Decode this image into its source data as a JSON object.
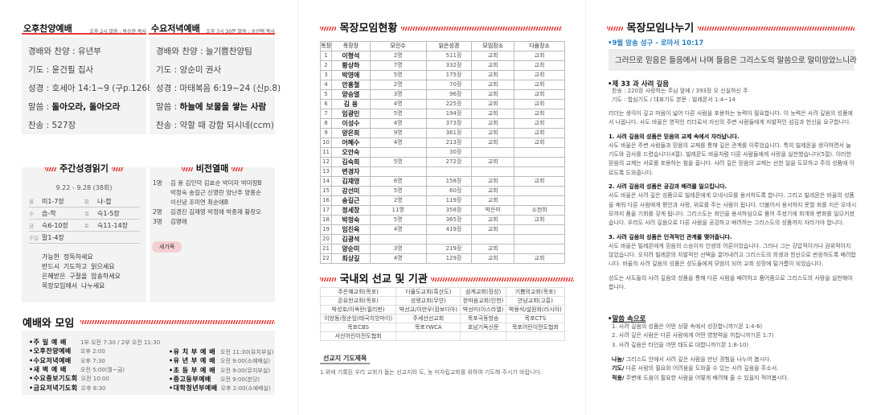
{
  "afternoon": {
    "title": "오후찬양예배",
    "sub": "오후 2시 말씀 : 박수현 목사",
    "lines": [
      {
        "label": "경배와 찬양 : ",
        "value": "유년부"
      },
      {
        "label": "기도 : ",
        "value": "윤건필 집사"
      },
      {
        "label": "성경 : ",
        "value": "호세아 14:1~9 (구p.1268)"
      },
      {
        "label": "말씀 : ",
        "value": "돌아오라, 돌아오라"
      },
      {
        "label": "찬송 : ",
        "value": "527장"
      }
    ]
  },
  "wednesday": {
    "title": "수요저녁예배",
    "sub": "오후 7시 30분 말씀 : 송선택 목사",
    "lines": [
      {
        "label": "경배와 찬양 : ",
        "value": "늘기쁨찬양팀"
      },
      {
        "label": "기도 : ",
        "value": "양순미 권사"
      },
      {
        "label": "성경 : ",
        "value": "마태복음 6:19~24 (신p.8)"
      },
      {
        "label": "말씀 : ",
        "value": "하늘에 보물을 쌓는 사람"
      },
      {
        "label": "찬송 : ",
        "value": "약할 때 강함 되시네(ccm)"
      }
    ]
  },
  "bible_reading": {
    "title": "주간성경읽기",
    "range": "9.22 - 9.28 (38회)",
    "rows": [
      [
        {
          "day": "월",
          "text": "미1-7장"
        },
        {
          "day": "화",
          "text": "나-합"
        }
      ],
      [
        {
          "day": "수",
          "text": "습-학"
        },
        {
          "day": "목",
          "text": "슥1-5장"
        }
      ],
      [
        {
          "day": "금",
          "text": "슥6-10장"
        },
        {
          "day": "토",
          "text": "슥11-14장"
        }
      ],
      [
        {
          "day": "주일",
          "text": "말1-4장"
        }
      ]
    ],
    "guide": [
      "가능한 정독하세요",
      "반드시 기도하고 읽으세요",
      "은혜받은 구절을 암송하세요",
      "목장모임에서 나누세요"
    ]
  },
  "vision": {
    "title": "비전열매",
    "entries": [
      {
        "count": "1명",
        "names": [
          "김   용 김인덕 김효순 박미자 박미정B",
          "박정숙 송길근 신영란 양난주 양홍순",
          "이신녕 조미연 최순애B"
        ]
      },
      {
        "count": "2명",
        "names": [
          "김경진 김재영 박정애 박종재 황창오"
        ]
      },
      {
        "count": "3명",
        "names": [
          "김명애"
        ]
      }
    ],
    "badge": "새가족"
  },
  "worship": {
    "title": "예배와 모임",
    "left": [
      {
        "label": "주 일 예 배",
        "time": "1부 오전 7:30 / 2부 오전 11:30"
      },
      {
        "label": "오후찬양예배",
        "time": "오후 2:00"
      },
      {
        "label": "수요저녁예배",
        "time": "오후 7:30"
      },
      {
        "label": "새 벽 예 배",
        "time": "오전 5:00(월~금)"
      },
      {
        "label": "수요중보기도회",
        "time": "오전 10:00"
      },
      {
        "label": "금요저녁기도회",
        "time": "오후 8:30"
      }
    ],
    "right": [
      {
        "label": "유 치 부 예 배",
        "time": "오전 11:30(유치부실)"
      },
      {
        "label": "유 년 부 예 배",
        "time": "오전 9:00(소예배실)"
      },
      {
        "label": "초 등 부 예 배",
        "time": "오전 9:00(뮤지부실)"
      },
      {
        "label": "중고등부예배",
        "time": "오전 9:00(본당)"
      },
      {
        "label": "대학청년부예배",
        "time": "오후 2:00(소예배실)"
      }
    ]
  },
  "cell": {
    "title": "목장모임현황",
    "headers": [
      "목장",
      "목장장",
      "모인수",
      "읽은성경",
      "모임장소",
      "다음장소"
    ],
    "rows": [
      [
        "1",
        "이형석",
        "2명",
        "511장",
        "교회",
        "교회"
      ],
      [
        "2",
        "황상하",
        "7명",
        "332장",
        "교회",
        "교회"
      ],
      [
        "3",
        "박영애",
        "5명",
        "175장",
        "교회",
        "교회"
      ],
      [
        "4",
        "안홍철",
        "2명",
        "70장",
        "교회",
        "교회"
      ],
      [
        "5",
        "양승열",
        "3명",
        "96장",
        "교회",
        "교회"
      ],
      [
        "6",
        "김   용",
        "4명",
        "225장",
        "교회",
        "교회"
      ],
      [
        "7",
        "임광민",
        "5명",
        "194장",
        "교회",
        "교회"
      ],
      [
        "8",
        "이성수",
        "4명",
        "373장",
        "교회",
        "교회"
      ],
      [
        "9",
        "양은희",
        "9명",
        "361장",
        "교회",
        "교회"
      ],
      [
        "10",
        "어혜수",
        "4명",
        "213장",
        "교회",
        "교회"
      ],
      [
        "11",
        "오안숙",
        "",
        "30장",
        "",
        ""
      ],
      [
        "12",
        "김숙희",
        "5명",
        "272장",
        "교회",
        ""
      ],
      [
        "13",
        "변경자",
        "",
        "",
        "",
        ""
      ],
      [
        "14",
        "김재영",
        "6명",
        "158장",
        "교회",
        "교회"
      ],
      [
        "15",
        "강선미",
        "5명",
        "60장",
        "교회",
        ""
      ],
      [
        "16",
        "송길근",
        "2명",
        "119장",
        "교회",
        ""
      ],
      [
        "17",
        "정세창",
        "11명",
        "358장",
        "박은미",
        "소현희"
      ],
      [
        "18",
        "박정숙",
        "5명",
        "365장",
        "교회",
        "교회"
      ],
      [
        "19",
        "임진옥",
        "4명",
        "419장",
        "교회",
        ""
      ],
      [
        "20",
        "김광석",
        "",
        "",
        "",
        ""
      ],
      [
        "21",
        "양순미",
        "3명",
        "219장",
        "교회",
        ""
      ],
      [
        "22",
        "최상길",
        "4명",
        "129장",
        "교회",
        "교회"
      ]
    ]
  },
  "missions": {
    "title": "국내외 선교 및 기관",
    "rows": [
      [
        "주은혜교회(목포)",
        "다물도교회(흑산도)",
        "삼계교회(장성)",
        "기쁨의교회(목포)"
      ],
      [
        "온유한교회(목포)",
        "성령교회(무안)",
        "한마음교회(인천)",
        "안남교회(고흥)"
      ],
      [
        "박성호/이옥란(필리핀)",
        "박선교/이만우(캄보디아)",
        "박선미(이스라엘)",
        "박용석/설원화(러시아)"
      ],
      [
        "이양동/정순임(태국치앙마이)",
        "주세선선교회",
        "목포극동방송",
        "목포CTS"
      ],
      [
        "목포CBS",
        "목포YWCA",
        "호남기독신문",
        "목포어린이전도협회"
      ],
      [
        "서산어린이전도협회",
        "",
        "",
        ""
      ]
    ],
    "prayer_title": "선교지 기도제목",
    "prayer_text": "1.위에 기록된 우리 교회가 돕는 선교지와 도, 농 미자립교회를 위하여 기도해 주시기 바랍니다."
  },
  "sharing": {
    "title": "목장모임나누기",
    "verse_label": "9월 암송 성구 - 로마서 10:17",
    "verse": "그러므로 믿음은 들음에서 나며 들음은 그리스도의 말씀으로 말미암았느니라",
    "lesson": "제 33 과 사려 깊음",
    "hymn": "찬송 : 220장 사랑하는 주님 앞에 / 393장 오 신실하신 주",
    "prayer": "기도 : 합심기도 / 대표기도   본문 : 빌레몬서 1:4~14",
    "intro": "리더는 생각이 깊고 마음이 넓어 다른 사람을 포용하는 능력이 필요합니다. 이 능력은 사려 깊음의 성품에서 나옵니다. 사도 바울은 영적인 리더로서 자신의 주변 사람들에게 자발적인 섬김과 헌신을 요구합니다.",
    "points": [
      {
        "head": "1. 사려 깊음의 성품은 믿음의 교제 속에서 자라납니다.",
        "body": "사도 바울은 주변 사람들과 믿음의 교제를 통해 깊은 관계를 이루었습니다. 특히 빌레몬을 생각하면서 늘 기도와 감사를 드렸습니다(4절). 빌레몬도 바울처럼 다른 사람들에게 사랑을 실천했습니다(5절). 이러한 믿음의 교제는 서로를 포용하는 힘을 줍니다. 사려 깊은 믿음의 교제는 선한 일을 도모하고 주의 성품에 이르도록 도와줍니다."
      },
      {
        "head": "2. 사려 깊음의 성품은 공감과 배려를 일으킵니다.",
        "body": "사도 바울은 사려 깊은 성품으로 빌레몬에게 오네시모를 용서하도록 합니다. 그리고 빌레몬은 바울의 성품을 배워 다른 사람에게 평안과 사랑, 위로를 주는 사람이 됩니다. 더불어서 용서하지 못할 죄를 지은 오네시모까지 품을 기회를 갖게 됩니다. 그리스도는 죄인을 용서하심으로 품어 주셨기에 회개와 변화를 일으키셨습니다. 우리도 사려 깊음으로 다른 사람을 공감하고 배려하는 그리스도의 성품까지 자라가야 합니다."
      },
      {
        "head": "3. 사려 깊음의 성품은 인격적인 관계를 맺어줍니다.",
        "body": "사도 바울은 빌레몬에게 믿음의 스승이자 인생의 어른이었습니다. 그러나 그는 강압적이거나 권위적이지 않았습니다. 오히려 빌레몬의 자발적인 선택을 끌어내려고 그리스도의 희생과 헌신으로 반응하도록 배려합니다. 바울의 사려 깊음의 성품은 성도들에게 모범이 되어 교회 성장에 밑거름이 되었습니다."
      }
    ],
    "closing": "성도는 사도들의 사려 깊음의 성품을 통해 다른 사람을 배려하고 품어줌으로 그리스도의 사랑을 실천해야 합니다.",
    "word_title": "말씀 속으로",
    "questions": [
      "1. 사려 깊음의 성품은 어떤 상황 속에서 성장합니까?(몬 1:4-6)",
      "2. 사려 깊은 사람은 다른 사람에게 어떤 영향력을 끼칩니까?(몬 1:7)",
      "3. 사려 깊음은 타인을 어떤 태도로 대합니까?(몬 1:8-10)"
    ],
    "apply": [
      {
        "label": "나눔/",
        "text": " 그리스도 안에서 사려 깊은 사람을 만난 경험을 나누어 봅시다."
      },
      {
        "label": "기도/",
        "text": " 다른 사람의 필요와 어려움을 도와줄 수 있는 사려 깊음을 주소서."
      },
      {
        "label": "적용/",
        "text": " 주변에 도움이 필요한 사람을 어떻게 배려해 줄 수 있을지 적어봅시다."
      }
    ]
  },
  "colors": {
    "accent": "#e53935",
    "verse_blue": "#2a7fc1",
    "panel": "#f3f3f3"
  }
}
